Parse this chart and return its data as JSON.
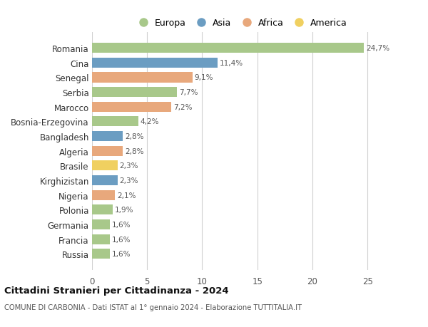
{
  "countries": [
    "Russia",
    "Francia",
    "Germania",
    "Polonia",
    "Nigeria",
    "Kirghizistan",
    "Brasile",
    "Algeria",
    "Bangladesh",
    "Bosnia-Erzegovina",
    "Marocco",
    "Serbia",
    "Senegal",
    "Cina",
    "Romania"
  ],
  "values": [
    1.6,
    1.6,
    1.6,
    1.9,
    2.1,
    2.3,
    2.3,
    2.8,
    2.8,
    4.2,
    7.2,
    7.7,
    9.1,
    11.4,
    24.7
  ],
  "labels": [
    "1,6%",
    "1,6%",
    "1,6%",
    "1,9%",
    "2,1%",
    "2,3%",
    "2,3%",
    "2,8%",
    "2,8%",
    "4,2%",
    "7,2%",
    "7,7%",
    "9,1%",
    "11,4%",
    "24,7%"
  ],
  "continents": [
    "Europa",
    "Europa",
    "Europa",
    "Europa",
    "Africa",
    "Asia",
    "America",
    "Africa",
    "Asia",
    "Europa",
    "Africa",
    "Europa",
    "Africa",
    "Asia",
    "Europa"
  ],
  "continent_colors": {
    "Europa": "#a8c88a",
    "Asia": "#6b9dc2",
    "Africa": "#e8a87c",
    "America": "#f0d060"
  },
  "legend_order": [
    "Europa",
    "Asia",
    "Africa",
    "America"
  ],
  "xlim": [
    0,
    27
  ],
  "xticks": [
    0,
    5,
    10,
    15,
    20,
    25
  ],
  "title": "Cittadini Stranieri per Cittadinanza - 2024",
  "subtitle": "COMUNE DI CARBONIA - Dati ISTAT al 1° gennaio 2024 - Elaborazione TUTTITALIA.IT",
  "bg_color": "#ffffff",
  "grid_color": "#d0d0d0",
  "bar_height": 0.68
}
